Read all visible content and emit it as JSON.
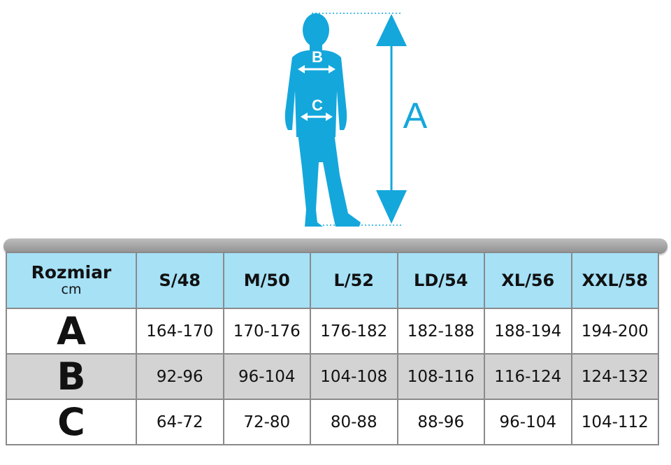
{
  "figure": {
    "label_a": "A",
    "label_b": "B",
    "label_c": "C",
    "color": "#14a7dc"
  },
  "table": {
    "corner": {
      "title": "Rozmiar",
      "unit": "cm"
    },
    "sizes": [
      "S/48",
      "M/50",
      "L/52",
      "LD/54",
      "XL/56",
      "XXL/58"
    ],
    "rows": [
      {
        "key": "A",
        "values": [
          "164-170",
          "170-176",
          "176-182",
          "182-188",
          "188-194",
          "194-200"
        ]
      },
      {
        "key": "B",
        "values": [
          "92-96",
          "96-104",
          "104-108",
          "108-116",
          "116-124",
          "124-132"
        ]
      },
      {
        "key": "C",
        "values": [
          "64-72",
          "72-80",
          "80-88",
          "88-96",
          "96-104",
          "104-112"
        ]
      }
    ],
    "header_color": "#a6e1f6",
    "stripe_color": "#d3d3d3"
  }
}
